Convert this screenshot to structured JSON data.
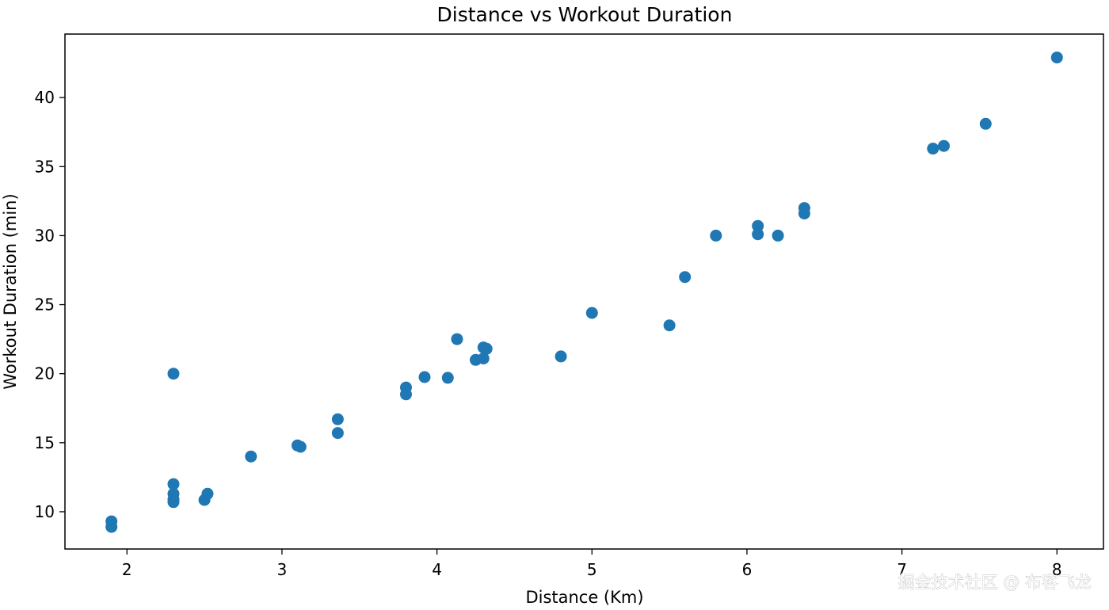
{
  "chart_data": {
    "type": "scatter",
    "title": "Distance vs Workout Duration",
    "xlabel": "Distance (Km)",
    "ylabel": "Workout Duration (min)",
    "xlim": [
      1.6,
      8.3
    ],
    "ylim": [
      7.3,
      44.6
    ],
    "xticks": [
      2,
      3,
      4,
      5,
      6,
      7,
      8
    ],
    "yticks": [
      10,
      15,
      20,
      25,
      30,
      35,
      40
    ],
    "grid": false,
    "legend": "none",
    "marker_color": "#1f77b4",
    "points": [
      {
        "x": 1.9,
        "y": 9.3
      },
      {
        "x": 1.9,
        "y": 8.9
      },
      {
        "x": 2.3,
        "y": 20.0
      },
      {
        "x": 2.3,
        "y": 12.0
      },
      {
        "x": 2.3,
        "y": 11.3
      },
      {
        "x": 2.3,
        "y": 10.9
      },
      {
        "x": 2.3,
        "y": 10.7
      },
      {
        "x": 2.5,
        "y": 10.85
      },
      {
        "x": 2.52,
        "y": 11.3
      },
      {
        "x": 2.8,
        "y": 14.0
      },
      {
        "x": 3.1,
        "y": 14.8
      },
      {
        "x": 3.12,
        "y": 14.7
      },
      {
        "x": 3.36,
        "y": 16.7
      },
      {
        "x": 3.36,
        "y": 15.7
      },
      {
        "x": 3.8,
        "y": 19.0
      },
      {
        "x": 3.8,
        "y": 18.5
      },
      {
        "x": 3.92,
        "y": 19.75
      },
      {
        "x": 4.07,
        "y": 19.7
      },
      {
        "x": 4.13,
        "y": 22.5
      },
      {
        "x": 4.25,
        "y": 21.0
      },
      {
        "x": 4.3,
        "y": 21.1
      },
      {
        "x": 4.3,
        "y": 21.9
      },
      {
        "x": 4.32,
        "y": 21.8
      },
      {
        "x": 4.8,
        "y": 21.25
      },
      {
        "x": 5.0,
        "y": 24.4
      },
      {
        "x": 5.5,
        "y": 23.5
      },
      {
        "x": 5.6,
        "y": 27.0
      },
      {
        "x": 5.8,
        "y": 30.0
      },
      {
        "x": 6.07,
        "y": 30.7
      },
      {
        "x": 6.07,
        "y": 30.1
      },
      {
        "x": 6.2,
        "y": 30.0
      },
      {
        "x": 6.37,
        "y": 32.0
      },
      {
        "x": 6.37,
        "y": 31.6
      },
      {
        "x": 7.2,
        "y": 36.3
      },
      {
        "x": 7.27,
        "y": 36.5
      },
      {
        "x": 7.54,
        "y": 38.1
      },
      {
        "x": 8.0,
        "y": 42.9
      }
    ]
  },
  "watermark": "掘金技术社区 @ 布客飞龙"
}
